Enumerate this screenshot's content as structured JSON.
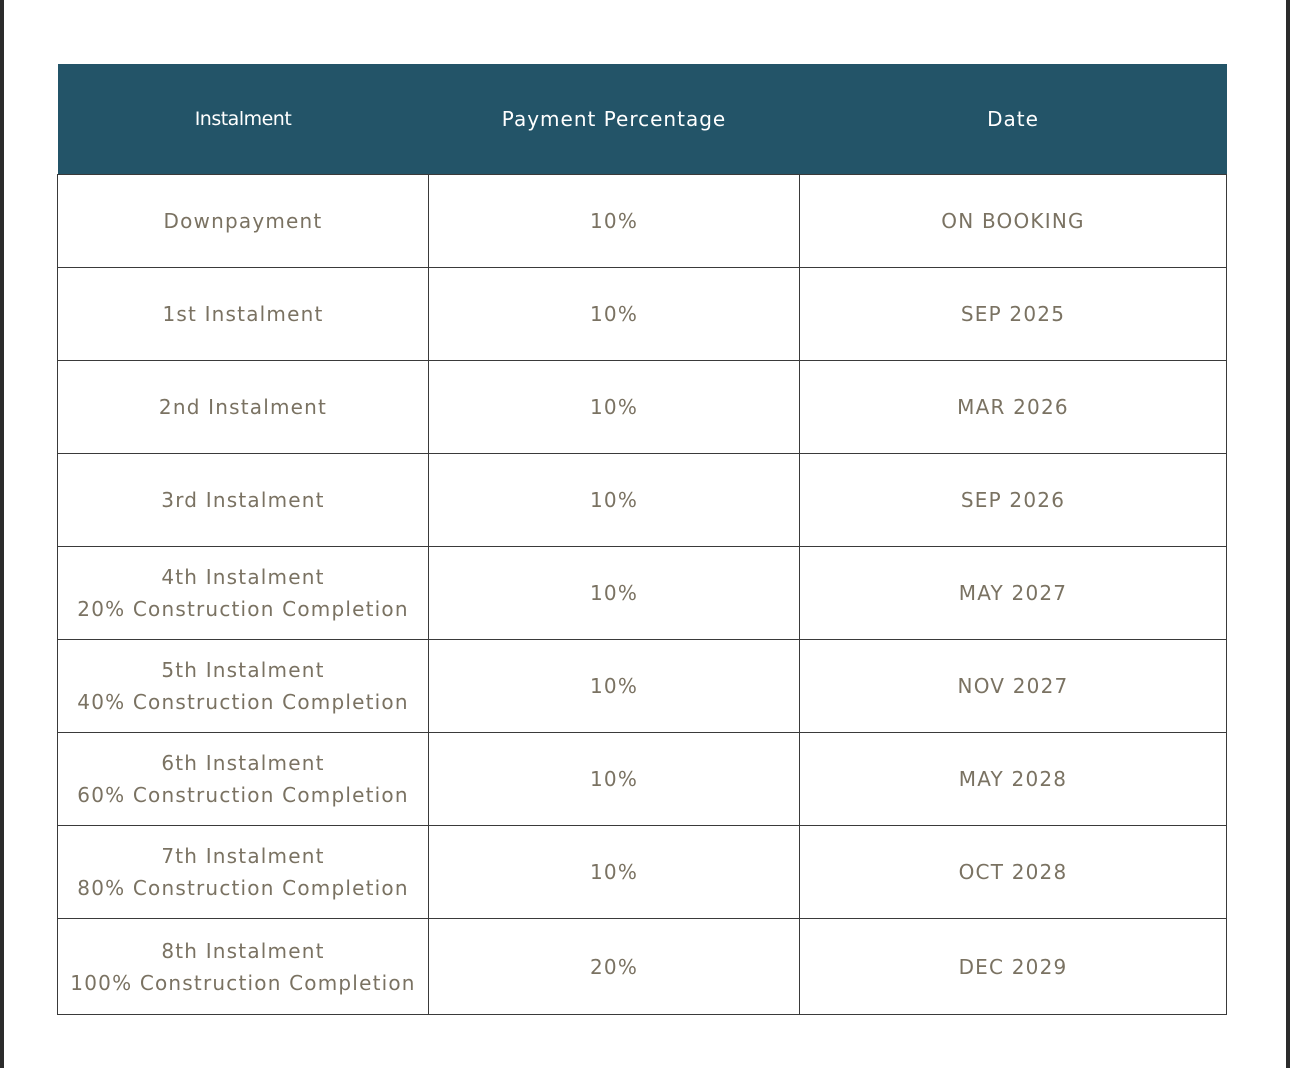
{
  "table": {
    "headers": [
      "Instalment",
      "Payment Percentage",
      "Date"
    ],
    "rows": [
      {
        "instalment": "Downpayment",
        "note": "",
        "percentage": "10%",
        "date": "ON BOOKING"
      },
      {
        "instalment": "1st Instalment",
        "note": "",
        "percentage": "10%",
        "date": "SEP 2025"
      },
      {
        "instalment": "2nd Instalment",
        "note": "",
        "percentage": "10%",
        "date": "MAR 2026"
      },
      {
        "instalment": "3rd Instalment",
        "note": "",
        "percentage": "10%",
        "date": "SEP 2026"
      },
      {
        "instalment": "4th Instalment",
        "note": "20% Construction Completion",
        "percentage": "10%",
        "date": "MAY 2027"
      },
      {
        "instalment": "5th Instalment",
        "note": "40% Construction Completion",
        "percentage": "10%",
        "date": "NOV 2027"
      },
      {
        "instalment": "6th Instalment",
        "note": "60% Construction Completion",
        "percentage": "10%",
        "date": "MAY 2028"
      },
      {
        "instalment": "7th Instalment",
        "note": "80% Construction Completion",
        "percentage": "10%",
        "date": "OCT 2028"
      },
      {
        "instalment": "8th Instalment",
        "note": "100% Construction Completion",
        "percentage": "20%",
        "date": "DEC 2029"
      }
    ]
  },
  "colors": {
    "header_bg": "#235468",
    "header_text": "#ffffff",
    "cell_text": "#7a7262",
    "border": "#3a3a3a"
  }
}
